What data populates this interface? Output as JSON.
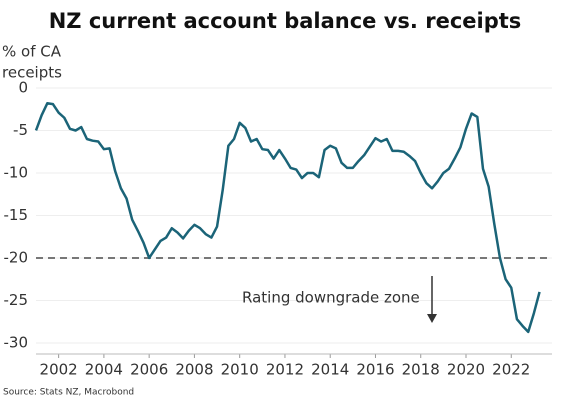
{
  "chart_data": {
    "type": "line",
    "title": "NZ current account balance vs. receipts",
    "y_label": [
      "% of CA",
      "receipts"
    ],
    "source": "Source: Stats NZ, Macrobond",
    "annotation": "Rating downgrade zone",
    "threshold": -20,
    "x": [
      2001.0,
      2001.25,
      2001.5,
      2001.75,
      2002.0,
      2002.25,
      2002.5,
      2002.75,
      2003.0,
      2003.25,
      2003.5,
      2003.75,
      2004.0,
      2004.25,
      2004.5,
      2004.75,
      2005.0,
      2005.25,
      2005.5,
      2005.75,
      2006.0,
      2006.25,
      2006.5,
      2006.75,
      2007.0,
      2007.25,
      2007.5,
      2007.75,
      2008.0,
      2008.25,
      2008.5,
      2008.75,
      2009.0,
      2009.25,
      2009.5,
      2009.75,
      2010.0,
      2010.25,
      2010.5,
      2010.75,
      2011.0,
      2011.25,
      2011.5,
      2011.75,
      2012.0,
      2012.25,
      2012.5,
      2012.75,
      2013.0,
      2013.25,
      2013.5,
      2013.75,
      2014.0,
      2014.25,
      2014.5,
      2014.75,
      2015.0,
      2015.25,
      2015.5,
      2015.75,
      2016.0,
      2016.25,
      2016.5,
      2016.75,
      2017.0,
      2017.25,
      2017.5,
      2017.75,
      2018.0,
      2018.25,
      2018.5,
      2018.75,
      2019.0,
      2019.25,
      2019.5,
      2019.75,
      2020.0,
      2020.25,
      2020.5,
      2020.75,
      2021.0,
      2021.25,
      2021.5,
      2021.75,
      2022.0,
      2022.25,
      2022.5,
      2022.75,
      2023.0,
      2023.25
    ],
    "series": [
      {
        "name": "Current account balance",
        "color": "#1b6478",
        "values": [
          -5.0,
          -3.2,
          -1.8,
          -1.9,
          -2.9,
          -3.5,
          -4.8,
          -5.0,
          -4.6,
          -6.0,
          -6.2,
          -6.3,
          -7.2,
          -7.1,
          -9.8,
          -11.8,
          -13.0,
          -15.5,
          -16.8,
          -18.2,
          -20.0,
          -19.0,
          -18.0,
          -17.6,
          -16.5,
          -17.0,
          -17.7,
          -16.8,
          -16.1,
          -16.5,
          -17.2,
          -17.6,
          -16.3,
          -12.0,
          -6.8,
          -6.0,
          -4.1,
          -4.7,
          -6.3,
          -6.0,
          -7.2,
          -7.3,
          -8.3,
          -7.3,
          -8.3,
          -9.4,
          -9.6,
          -10.6,
          -10.0,
          -10.0,
          -10.5,
          -7.3,
          -6.8,
          -7.1,
          -8.8,
          -9.4,
          -9.4,
          -8.6,
          -7.9,
          -6.9,
          -5.9,
          -6.3,
          -6.0,
          -7.4,
          -7.4,
          -7.5,
          -8.0,
          -8.6,
          -10.0,
          -11.2,
          -11.8,
          -11.0,
          -10.0,
          -9.5,
          -8.3,
          -7.0,
          -4.8,
          -3.0,
          -3.4,
          -9.5,
          -11.6,
          -16.0,
          -20.0,
          -22.5,
          -23.5,
          -27.2,
          -28.0,
          -28.7,
          -26.5,
          -24.0
        ]
      }
    ],
    "xlim": [
      2001,
      2023.8
    ],
    "xticks": [
      2002,
      2004,
      2006,
      2008,
      2010,
      2012,
      2014,
      2016,
      2018,
      2020,
      2022
    ],
    "ylim": [
      -31.3,
      0
    ],
    "yticks": [
      0,
      -5,
      -10,
      -15,
      -20,
      -25,
      -30
    ],
    "grid": true
  }
}
